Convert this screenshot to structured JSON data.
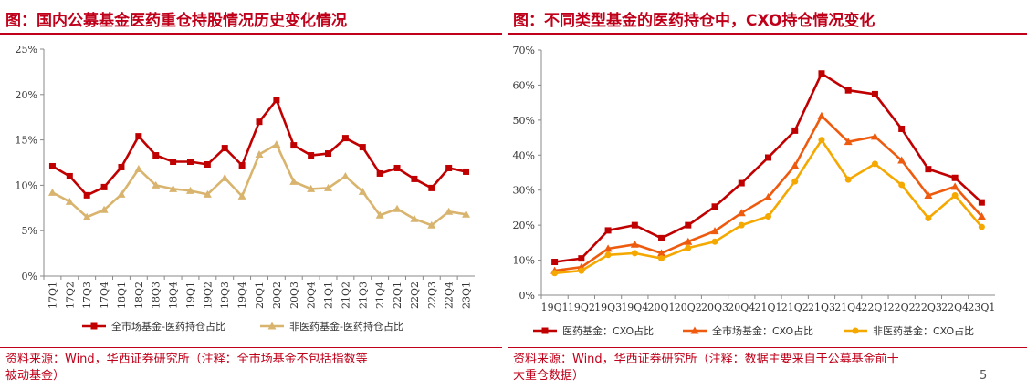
{
  "left": {
    "title": "图：国内公募基金医药重仓持股情况历史变化情况",
    "source_line1": "资料来源：Wind，华西证券研究所（注释：全市场基金不包括指数等",
    "source_line2": "被动基金）"
  },
  "right": {
    "title": "图：不同类型基金的医药持仓中，CXO持仓情况变化",
    "source_line1": "资料来源：Wind，华西证券研究所（注释：数据主要来自于公募基金前十",
    "source_line2": "大重仓数据）"
  },
  "page_number": "5",
  "chart_data": [
    {
      "type": "line",
      "title": "",
      "xlabel": "",
      "ylabel": "",
      "ylim": [
        0,
        25
      ],
      "yticks": [
        "0%",
        "5%",
        "10%",
        "15%",
        "20%",
        "25%"
      ],
      "grid": false,
      "legend_position": "bottom",
      "categories": [
        "17Q1",
        "17Q2",
        "17Q3",
        "17Q4",
        "18Q1",
        "18Q2",
        "18Q3",
        "18Q4",
        "19Q1",
        "19Q2",
        "19Q3",
        "19Q4",
        "20Q1",
        "20Q2",
        "20Q3",
        "20Q4",
        "21Q1",
        "21Q2",
        "21Q3",
        "21Q4",
        "22Q1",
        "22Q2",
        "22Q3",
        "22Q4",
        "23Q1"
      ],
      "series": [
        {
          "name": "全市场基金-医药持仓占比",
          "color": "#c00000",
          "marker": "square",
          "values": [
            12.1,
            11.0,
            8.9,
            9.8,
            12.0,
            15.4,
            13.3,
            12.6,
            12.6,
            12.3,
            14.1,
            12.2,
            17.0,
            19.4,
            14.4,
            13.3,
            13.5,
            15.2,
            14.2,
            11.3,
            11.9,
            10.7,
            9.7,
            11.9,
            11.5
          ]
        },
        {
          "name": "非医药基金-医药持仓占比",
          "color": "#d9b46e",
          "marker": "triangle",
          "values": [
            9.2,
            8.2,
            6.5,
            7.3,
            9.0,
            11.8,
            10.0,
            9.6,
            9.4,
            9.0,
            10.8,
            8.8,
            13.4,
            14.5,
            10.4,
            9.6,
            9.7,
            11.0,
            9.3,
            6.7,
            7.4,
            6.3,
            5.6,
            7.1,
            6.8
          ]
        }
      ]
    },
    {
      "type": "line",
      "title": "",
      "xlabel": "",
      "ylabel": "",
      "ylim": [
        0,
        70
      ],
      "yticks": [
        "0%",
        "10%",
        "20%",
        "30%",
        "40%",
        "50%",
        "60%",
        "70%"
      ],
      "grid": false,
      "legend_position": "bottom",
      "categories": [
        "19Q1",
        "19Q2",
        "19Q3",
        "19Q4",
        "20Q1",
        "20Q2",
        "20Q3",
        "20Q4",
        "21Q1",
        "21Q2",
        "21Q3",
        "21Q4",
        "22Q1",
        "22Q2",
        "22Q3",
        "22Q4",
        "23Q1"
      ],
      "series": [
        {
          "name": "医药基金：CXO占比",
          "color": "#c00000",
          "marker": "square",
          "values": [
            9.5,
            10.5,
            18.5,
            20.0,
            16.3,
            20.0,
            25.3,
            32.0,
            39.3,
            47.0,
            63.3,
            58.5,
            57.4,
            47.5,
            36.0,
            33.5,
            26.5
          ]
        },
        {
          "name": "全市场基金：CXO占比",
          "color": "#ee5a0e",
          "marker": "triangle",
          "values": [
            7.0,
            8.0,
            13.3,
            14.5,
            12.0,
            15.3,
            18.3,
            23.5,
            28.0,
            37.0,
            51.2,
            43.8,
            45.3,
            38.5,
            28.5,
            31.0,
            22.5
          ]
        },
        {
          "name": "非医药基金：CXO占比",
          "color": "#f5a800",
          "marker": "circle",
          "values": [
            6.3,
            7.0,
            11.5,
            12.0,
            10.5,
            13.5,
            15.3,
            20.0,
            22.5,
            32.5,
            44.3,
            33.0,
            37.5,
            31.5,
            22.0,
            28.5,
            19.5
          ]
        }
      ]
    }
  ]
}
